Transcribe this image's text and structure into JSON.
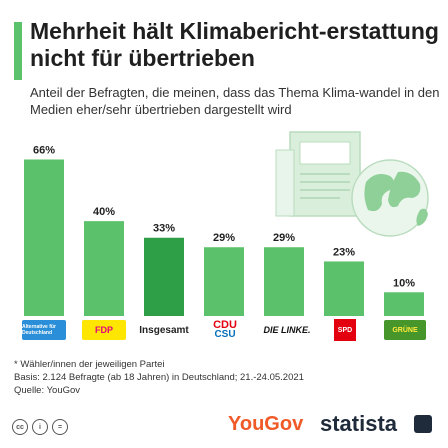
{
  "header": {
    "title": "Mehrheit hält Klimabericht-erstattung nicht für übertrieben",
    "subtitle": "Anteil der Befragten, die meinen, dass das Thema Klima-wandel in den Medien eher/sehr übertrieben dargestellt wird"
  },
  "chart_data": {
    "type": "bar",
    "categories": [
      "AfD",
      "FDP",
      "Insgesamt",
      "CDU/CSU",
      "DIE LINKE.",
      "SPD",
      "Grüne"
    ],
    "values": [
      66,
      40,
      33,
      29,
      29,
      23,
      10
    ],
    "value_labels": [
      "66%",
      "40%",
      "33%",
      "29%",
      "29%",
      "23%",
      "10%"
    ],
    "ylim": [
      0,
      70
    ],
    "colors": {
      "default": "#5bc16a",
      "highlight": "#2e9e47"
    },
    "highlight_index": 2
  },
  "logos": {
    "afd": "Alternative für Deutschland",
    "fdp": "FDP",
    "insgesamt": "Insgesamt",
    "cdu": "CDU",
    "csu": "CSU",
    "linke": "DIE LINKE.",
    "spd": "SPD",
    "gruene": "GRÜNE"
  },
  "footnotes": {
    "line1": "* Wähler/innen der jeweiligen Partei",
    "line2": "Basis: 2.124 Befragte (ab 18 Jahren) in Deutschland; 21.-24.05.2021",
    "line3": "Quelle: YouGov"
  },
  "footer": {
    "yougov": "YouGov",
    "statista": "statista",
    "cc": [
      "cc",
      "i",
      "="
    ]
  }
}
